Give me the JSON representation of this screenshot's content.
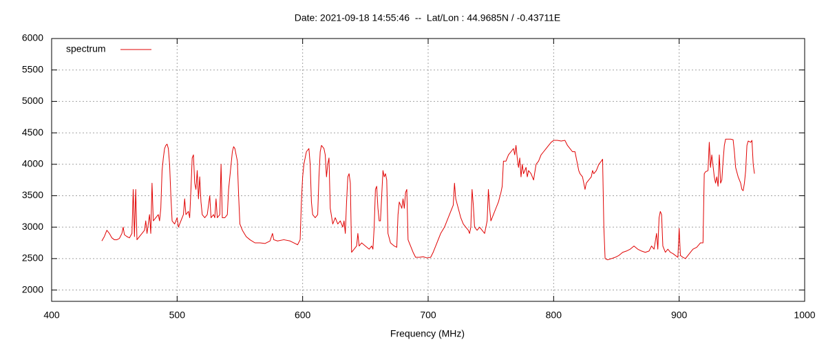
{
  "chart_data": {
    "type": "line",
    "title": "Date: 2021-09-18 14:55:46  --  Lat/Lon : 44.9685N / -0.43711E",
    "xlabel": "Frequency (MHz)",
    "xlim": [
      400,
      1000
    ],
    "xticks": [
      400,
      500,
      600,
      700,
      800,
      900,
      1000
    ],
    "ylim": [
      1820,
      6000
    ],
    "yticks": [
      2000,
      2500,
      3000,
      3500,
      4000,
      4500,
      5000,
      5500,
      6000
    ],
    "grid": true,
    "legend": "top-left",
    "x": [
      440,
      442,
      444,
      446,
      448,
      450,
      452,
      454,
      456,
      457,
      458,
      460,
      462,
      464,
      465,
      466,
      467,
      468,
      470,
      472,
      474,
      475,
      476,
      478,
      479,
      480,
      481,
      483,
      485,
      486,
      487,
      488,
      489,
      490,
      491,
      492,
      493,
      494,
      495,
      496,
      498,
      500,
      501,
      503,
      505,
      506,
      507,
      509,
      510,
      511,
      512,
      513,
      514,
      515,
      516,
      517,
      518,
      519,
      520,
      522,
      524,
      526,
      527,
      529,
      530,
      531,
      532,
      534,
      535,
      536,
      538,
      540,
      541,
      542,
      543,
      544,
      545,
      546,
      547,
      548,
      549,
      550,
      552,
      555,
      558,
      562,
      566,
      570,
      574,
      576,
      577,
      580,
      585,
      590,
      594,
      596,
      598,
      599,
      600,
      601,
      603,
      605,
      606,
      607,
      608,
      610,
      612,
      613,
      614,
      615,
      617,
      618,
      619,
      620,
      621,
      622,
      624,
      626,
      628,
      630,
      632,
      633,
      634,
      635,
      636,
      637,
      638,
      639,
      641,
      643,
      644,
      645,
      647,
      650,
      653,
      655,
      656,
      657,
      658,
      659,
      660,
      661,
      662,
      663,
      664,
      665,
      666,
      667,
      668,
      670,
      673,
      675,
      676,
      677,
      679,
      680,
      681,
      682,
      683,
      684,
      685,
      686,
      688,
      690,
      693,
      696,
      699,
      702,
      704,
      707,
      710,
      713,
      716,
      718,
      720,
      721,
      722,
      724,
      726,
      728,
      730,
      732,
      733,
      734,
      735,
      736,
      737,
      739,
      741,
      743,
      745,
      747,
      748,
      749,
      750,
      752,
      754,
      756,
      758,
      759,
      760,
      762,
      764,
      766,
      768,
      769,
      770,
      771,
      772,
      773,
      774,
      775,
      776,
      778,
      779,
      780,
      782,
      784,
      786,
      788,
      790,
      792,
      794,
      796,
      798,
      800,
      803,
      806,
      809,
      811,
      813,
      815,
      817,
      818,
      819,
      820,
      821,
      823,
      825,
      826,
      828,
      830,
      831,
      832,
      834,
      836,
      838,
      839,
      840,
      841,
      843,
      846,
      849,
      852,
      855,
      858,
      861,
      864,
      867,
      870,
      873,
      876,
      878,
      880,
      882,
      883,
      884,
      885,
      886,
      887,
      889,
      891,
      893,
      895,
      897,
      899,
      900,
      901,
      903,
      905,
      907,
      909,
      911,
      914,
      917,
      919,
      920,
      921,
      923,
      924,
      925,
      926,
      928,
      929,
      930,
      931,
      932,
      933,
      934,
      935,
      936,
      937,
      939,
      941,
      943,
      944,
      945,
      947,
      949,
      950,
      951,
      952,
      953,
      954,
      955,
      957,
      958,
      959,
      960
    ],
    "series": [
      {
        "name": "spectrum",
        "color": "#e00000",
        "values": [
          2780,
          2850,
          2950,
          2900,
          2830,
          2800,
          2800,
          2820,
          2900,
          3000,
          2880,
          2850,
          2830,
          2900,
          3600,
          2850,
          3600,
          2800,
          2850,
          2900,
          2950,
          3100,
          2900,
          3200,
          2900,
          3700,
          3100,
          3150,
          3200,
          3100,
          3300,
          3900,
          4100,
          4250,
          4300,
          4320,
          4250,
          4000,
          3500,
          3100,
          3050,
          3150,
          3000,
          3100,
          3200,
          3450,
          3200,
          3250,
          3150,
          3600,
          4100,
          4150,
          3700,
          3600,
          3900,
          3450,
          3800,
          3400,
          3200,
          3150,
          3200,
          3500,
          3150,
          3200,
          3150,
          3450,
          3150,
          3200,
          4000,
          3150,
          3150,
          3200,
          3600,
          3800,
          4000,
          4200,
          4280,
          4250,
          4150,
          4050,
          3500,
          3050,
          2950,
          2850,
          2800,
          2750,
          2750,
          2740,
          2780,
          2900,
          2800,
          2780,
          2800,
          2780,
          2740,
          2720,
          2800,
          3400,
          3800,
          4000,
          4200,
          4250,
          4000,
          3400,
          3200,
          3150,
          3200,
          3800,
          4200,
          4300,
          4250,
          4150,
          3800,
          4000,
          4100,
          3300,
          3050,
          3150,
          3050,
          3100,
          3000,
          3100,
          2900,
          3400,
          3800,
          3850,
          3700,
          2600,
          2650,
          2700,
          2900,
          2700,
          2750,
          2700,
          2650,
          2700,
          2650,
          3000,
          3600,
          3650,
          3300,
          3100,
          3100,
          3500,
          3900,
          3800,
          3850,
          3750,
          2900,
          2750,
          2700,
          2680,
          3200,
          3400,
          3300,
          3450,
          3300,
          3550,
          3600,
          2800,
          2750,
          2700,
          2600,
          2520,
          2520,
          2530,
          2510,
          2520,
          2600,
          2750,
          2900,
          3000,
          3150,
          3250,
          3350,
          3700,
          3450,
          3300,
          3150,
          3050,
          3000,
          2950,
          2900,
          3000,
          3600,
          3350,
          3000,
          2950,
          3000,
          2950,
          2900,
          3100,
          3600,
          3300,
          3100,
          3200,
          3300,
          3400,
          3550,
          3650,
          4050,
          4050,
          4150,
          4200,
          4250,
          4150,
          4300,
          4100,
          3950,
          4100,
          3800,
          4000,
          3850,
          3950,
          3800,
          3900,
          3850,
          3750,
          4000,
          4050,
          4150,
          4200,
          4250,
          4300,
          4350,
          4380,
          4380,
          4370,
          4380,
          4300,
          4250,
          4200,
          4200,
          4100,
          4000,
          3900,
          3850,
          3800,
          3600,
          3700,
          3750,
          3800,
          3900,
          3850,
          3900,
          4000,
          4050,
          4080,
          3000,
          2500,
          2480,
          2500,
          2520,
          2550,
          2600,
          2620,
          2650,
          2700,
          2650,
          2620,
          2600,
          2620,
          2700,
          2650,
          2900,
          2650,
          3150,
          3250,
          3200,
          2700,
          2600,
          2650,
          2600,
          2580,
          2550,
          2520,
          2980,
          2550,
          2520,
          2500,
          2550,
          2600,
          2650,
          2680,
          2750,
          2750,
          3850,
          3880,
          3900,
          4350,
          3950,
          4150,
          3800,
          3700,
          3800,
          3650,
          4150,
          3700,
          3750,
          4050,
          4300,
          4400,
          4400,
          4400,
          4390,
          4200,
          3950,
          3800,
          3700,
          3600,
          3580,
          3700,
          3900,
          4300,
          4370,
          4350,
          4380,
          4000,
          3850
        ]
      }
    ]
  }
}
